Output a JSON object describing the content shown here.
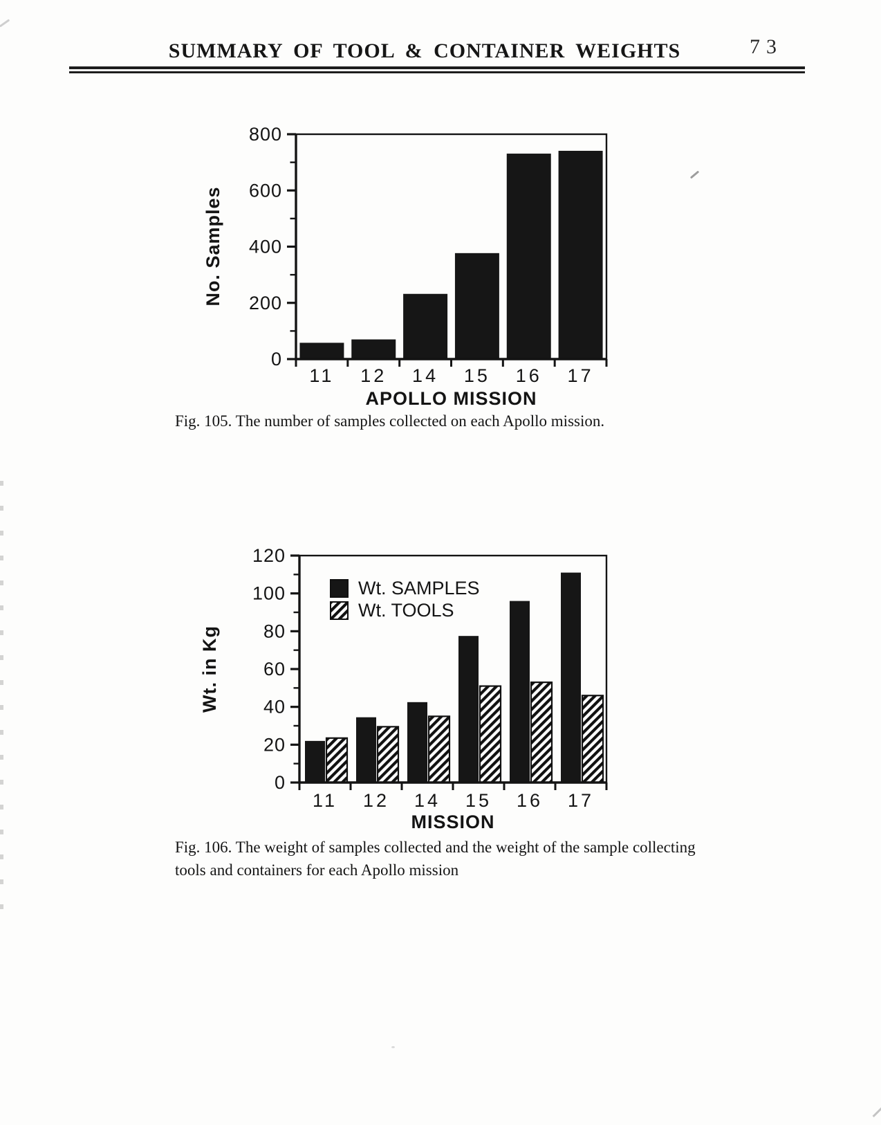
{
  "page_number": "73",
  "header": {
    "title": "SUMMARY OF TOOL & CONTAINER WEIGHTS"
  },
  "figure_105": {
    "caption": "Fig. 105. The number of samples collected on each Apollo mission."
  },
  "figure_106": {
    "caption_line1": "Fig. 106.  The weight of samples collected and the weight of the sample collecting",
    "caption_line2": "tools and containers for each Apollo mission"
  },
  "chart_data": [
    {
      "type": "bar",
      "figure": "Fig. 105",
      "title": "",
      "categories": [
        "11",
        "12",
        "14",
        "15",
        "16",
        "17"
      ],
      "values": [
        58,
        70,
        232,
        377,
        731,
        741
      ],
      "xlabel": "APOLLO MISSION",
      "ylabel": "No. Samples",
      "ylim": [
        0,
        800
      ],
      "ytick_major": 200,
      "ytick_minor": 100,
      "grid": false,
      "bar_color": "#161616",
      "frame": "full-box"
    },
    {
      "type": "bar",
      "figure": "Fig. 106",
      "title": "",
      "categories": [
        "11",
        "12",
        "14",
        "15",
        "16",
        "17"
      ],
      "series": [
        {
          "name": "Wt. SAMPLES",
          "pattern": "solid",
          "values": [
            22,
            34.5,
            42.5,
            77.5,
            96,
            111
          ]
        },
        {
          "name": "Wt. TOOLS",
          "pattern": "diagonal-hatch",
          "values": [
            23.5,
            29.5,
            35,
            51,
            53,
            46
          ]
        }
      ],
      "xlabel": "MISSION",
      "ylabel": "Wt. in Kg",
      "ylim": [
        0,
        120
      ],
      "ytick_major": 20,
      "ytick_minor": 10,
      "grid": false,
      "bar_color": "#161616",
      "legend_position": "upper-left-inside",
      "frame": "full-box"
    }
  ]
}
